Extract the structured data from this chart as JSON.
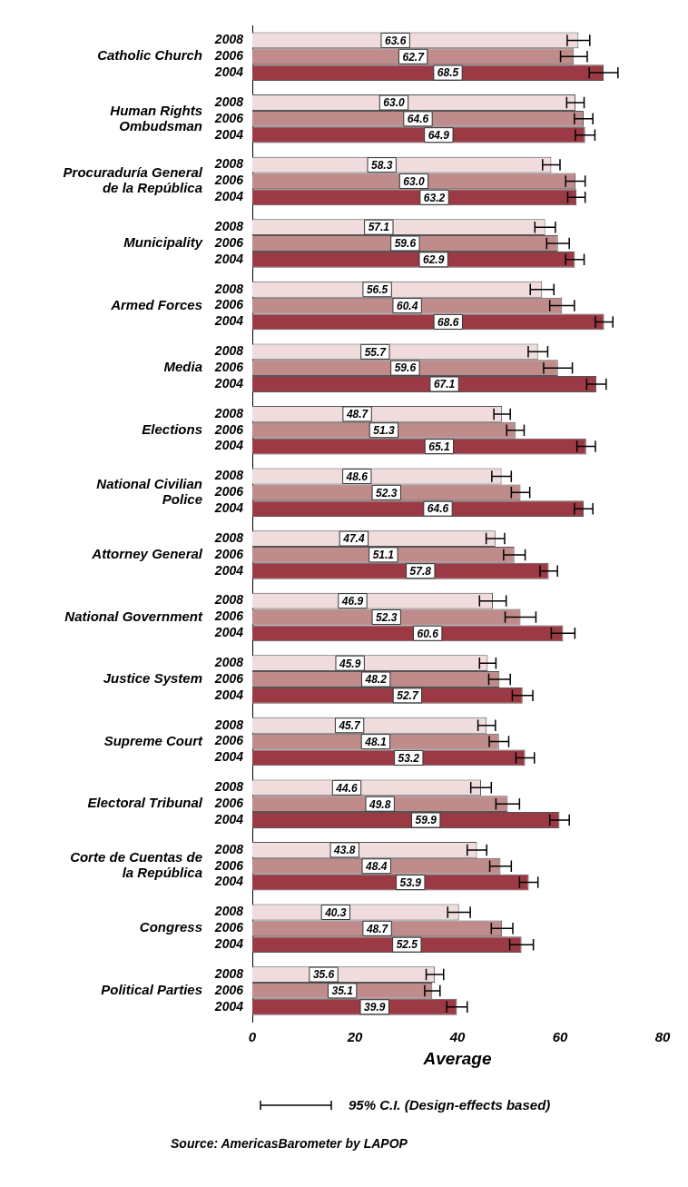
{
  "chart_data": {
    "type": "bar",
    "orientation": "horizontal",
    "xlabel": "Average",
    "categories": [
      "Catholic Church",
      "Human Rights Ombudsman",
      "Procuraduría General de la República",
      "Municipality",
      "Armed Forces",
      "Media",
      "Elections",
      "National Civilian Police",
      "Attorney General",
      "National Government",
      "Justice System",
      "Supreme Court",
      "Electoral Tribunal",
      "Corte de Cuentas de la República",
      "Congress",
      "Political Parties"
    ],
    "series": [
      {
        "name": "2008",
        "color": "#f0dcdc",
        "values": [
          63.6,
          63.0,
          58.3,
          57.1,
          56.5,
          55.7,
          48.7,
          48.6,
          47.4,
          46.9,
          45.9,
          45.7,
          44.6,
          43.8,
          40.3,
          35.6
        ],
        "errors": [
          2.2,
          1.7,
          1.7,
          2.0,
          2.3,
          1.9,
          1.6,
          1.9,
          1.8,
          2.6,
          1.6,
          1.7,
          2.0,
          1.9,
          2.2,
          1.7
        ],
        "value_labels": [
          "63.6",
          "63.0",
          "58.3",
          "57.1",
          "56.5",
          "55.7",
          "48.7",
          "48.6",
          "47.4",
          "46.9",
          "45.9",
          "45.7",
          "44.6",
          "43.8",
          "40.3",
          "35.6"
        ]
      },
      {
        "name": "2006",
        "color": "#c08b8b",
        "values": [
          62.7,
          64.6,
          63.0,
          59.6,
          60.4,
          59.6,
          51.3,
          52.3,
          51.1,
          52.3,
          48.2,
          48.1,
          49.8,
          48.4,
          48.7,
          35.1
        ],
        "errors": [
          2.6,
          1.8,
          1.9,
          2.2,
          2.4,
          2.8,
          1.7,
          1.8,
          2.1,
          3.0,
          2.1,
          1.9,
          2.3,
          2.1,
          2.1,
          1.5
        ],
        "value_labels": [
          "62.7",
          "64.6",
          "63.0",
          "59.6",
          "60.4",
          "59.6",
          "51.3",
          "52.3",
          "51.1",
          "52.3",
          "48.2",
          "48.1",
          "49.8",
          "48.4",
          "48.7",
          "35.1"
        ]
      },
      {
        "name": "2004",
        "color": "#9b3a44",
        "values": [
          68.5,
          64.9,
          63.2,
          62.9,
          68.6,
          67.1,
          65.1,
          64.6,
          57.8,
          60.6,
          52.7,
          53.2,
          59.9,
          53.9,
          52.5,
          39.9
        ],
        "errors": [
          2.8,
          1.9,
          1.7,
          1.8,
          1.7,
          1.9,
          1.8,
          1.8,
          1.7,
          2.3,
          2.0,
          1.8,
          1.9,
          1.8,
          2.3,
          2.0
        ],
        "value_labels": [
          "68.5",
          "64.9",
          "63.2",
          "62.9",
          "68.6",
          "67.1",
          "65.1",
          "64.6",
          "57.8",
          "60.6",
          "52.7",
          "53.2",
          "59.9",
          "53.9",
          "52.5",
          "39.9"
        ]
      }
    ],
    "xlim": [
      0,
      80
    ],
    "xticks": [
      0,
      20,
      40,
      60,
      80
    ],
    "grid": false,
    "legend": false,
    "annotations": [
      "95% C.I. (Design-effects based)",
      "Source: AmericasBarometer by LAPOP"
    ]
  }
}
